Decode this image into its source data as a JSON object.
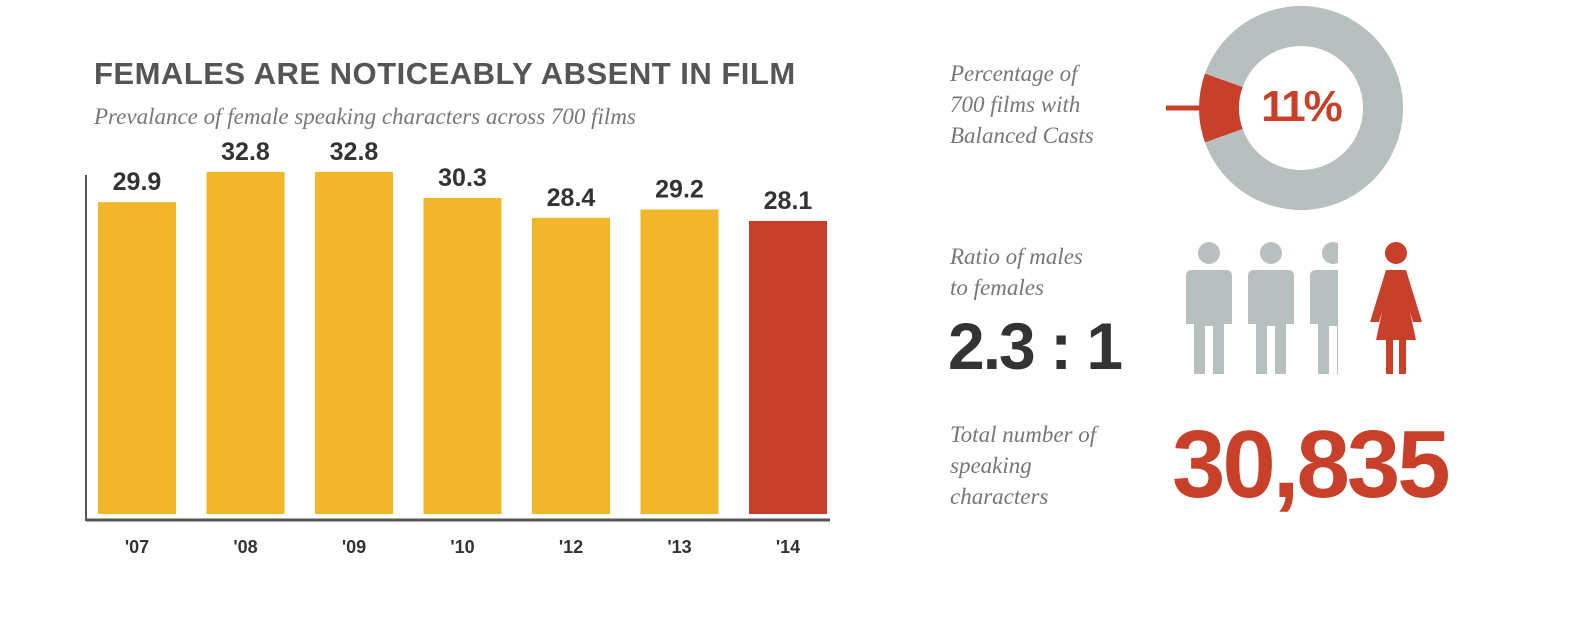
{
  "chart_data": [
    {
      "type": "bar",
      "title": "FEMALES ARE NOTICEABLY ABSENT IN FILM",
      "subtitle": "Prevalance of female speaking characters across 700 films",
      "categories": [
        "'07",
        "'08",
        "'09",
        "'10",
        "'12",
        "'13",
        "'14"
      ],
      "values": [
        29.9,
        32.8,
        32.8,
        30.3,
        28.4,
        29.2,
        28.1
      ],
      "value_labels": [
        "29.9",
        "32.8",
        "32.8",
        "30.3",
        "28.4",
        "29.2",
        "28.1"
      ],
      "ylim": [
        0,
        35
      ],
      "grid": false,
      "colors": {
        "default": "#f2b62b",
        "highlight": "#c9402a"
      },
      "highlight_index": 6
    },
    {
      "type": "pie",
      "label": "Percentage of\n700 films with\nBalanced Casts",
      "value_label": "11%",
      "slices": [
        {
          "value": 11,
          "color": "#c9402a"
        },
        {
          "value": 89,
          "color": "#b8c0bf"
        }
      ]
    }
  ],
  "ratio": {
    "label": "Ratio of males\nto females",
    "value": "2.3 : 1",
    "males": 2.3,
    "females": 1,
    "icons": [
      "male-icon",
      "female-icon"
    ],
    "male_color": "#b8c0bf",
    "female_color": "#c9402a"
  },
  "total": {
    "label": "Total number of\nspeaking\ncharacters",
    "value": "30,835"
  }
}
